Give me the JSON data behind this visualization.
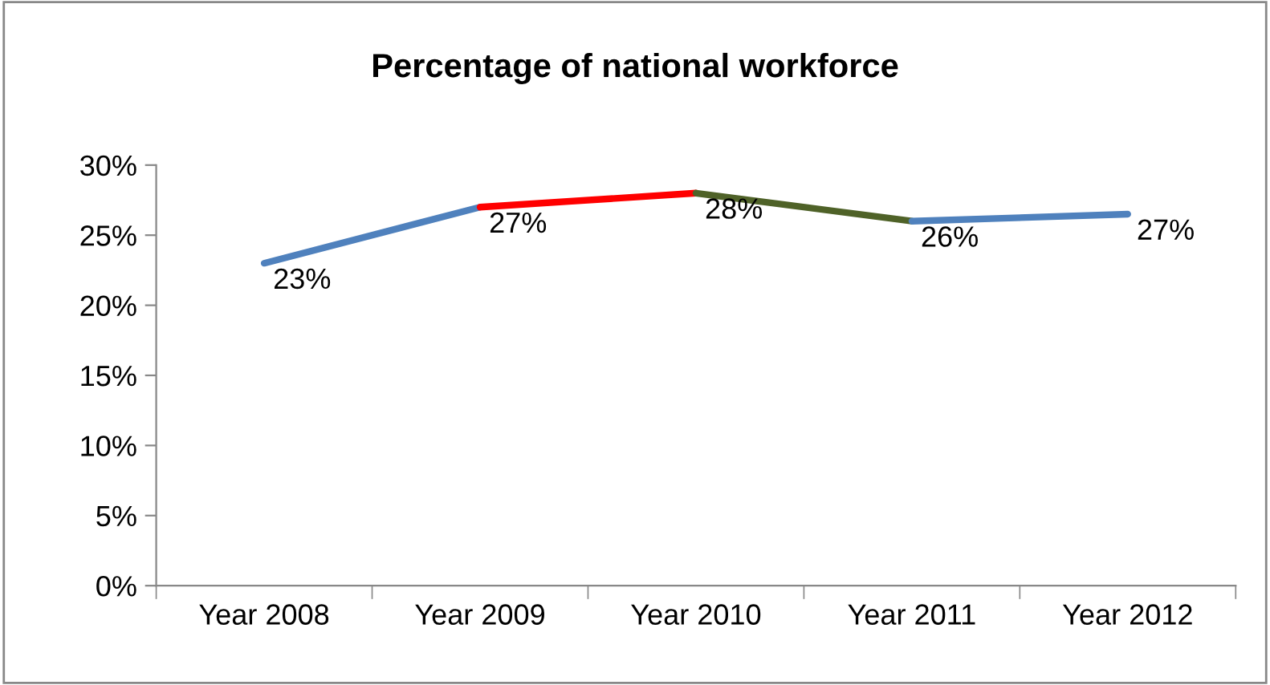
{
  "chart_data": {
    "type": "line",
    "title": "Percentage of national workforce",
    "categories": [
      "Year 2008",
      "Year 2009",
      "Year 2010",
      "Year 2011",
      "Year 2012"
    ],
    "series": [
      {
        "color": "#4f81bd",
        "values": [
          23,
          27,
          null,
          null,
          null
        ],
        "value_labels": [
          "23%",
          null,
          null,
          null,
          null
        ]
      },
      {
        "color": "#ff0000",
        "values": [
          null,
          27,
          28,
          null,
          null
        ],
        "value_labels": [
          null,
          "27%",
          null,
          null,
          null
        ]
      },
      {
        "color": "#4f6228",
        "values": [
          null,
          null,
          28,
          26,
          null
        ],
        "value_labels": [
          null,
          null,
          "28%",
          null,
          null
        ]
      },
      {
        "color": "#4f81bd",
        "values": [
          null,
          null,
          null,
          26,
          26.5
        ],
        "value_labels": [
          null,
          null,
          null,
          "26%",
          "27%"
        ]
      }
    ],
    "ylim": [
      0,
      30
    ],
    "yticks": [
      {
        "value": 0,
        "label": "0%"
      },
      {
        "value": 5,
        "label": "5%"
      },
      {
        "value": 10,
        "label": "10%"
      },
      {
        "value": 15,
        "label": "15%"
      },
      {
        "value": 20,
        "label": "20%"
      },
      {
        "value": 25,
        "label": "25%"
      },
      {
        "value": 30,
        "label": "30%"
      }
    ],
    "grid": false,
    "marker": "none",
    "line_style": "solid"
  }
}
